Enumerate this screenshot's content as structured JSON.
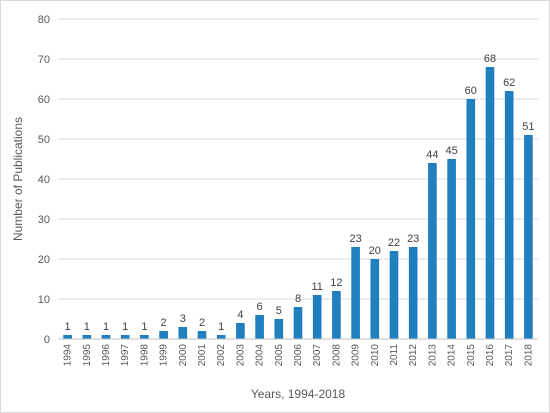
{
  "chart_data": {
    "type": "bar",
    "title": "",
    "xlabel": "Years, 1994-2018",
    "ylabel": "Number of Publications",
    "ylim": [
      0,
      80
    ],
    "yticks": [
      0,
      10,
      20,
      30,
      40,
      50,
      60,
      70,
      80
    ],
    "grid": true,
    "legend": "none",
    "bar_color": "#1f7fbf",
    "categories": [
      "1994",
      "1995",
      "1996",
      "1997",
      "1998",
      "1999",
      "2000",
      "2001",
      "2002",
      "2003",
      "2004",
      "2005",
      "2006",
      "2007",
      "2008",
      "2009",
      "2010",
      "2011",
      "2012",
      "2013",
      "2014",
      "2015",
      "2016",
      "2017",
      "2018"
    ],
    "values": [
      1,
      1,
      1,
      1,
      1,
      2,
      3,
      2,
      1,
      4,
      6,
      5,
      8,
      11,
      12,
      23,
      20,
      22,
      23,
      44,
      45,
      60,
      68,
      62,
      51
    ]
  }
}
